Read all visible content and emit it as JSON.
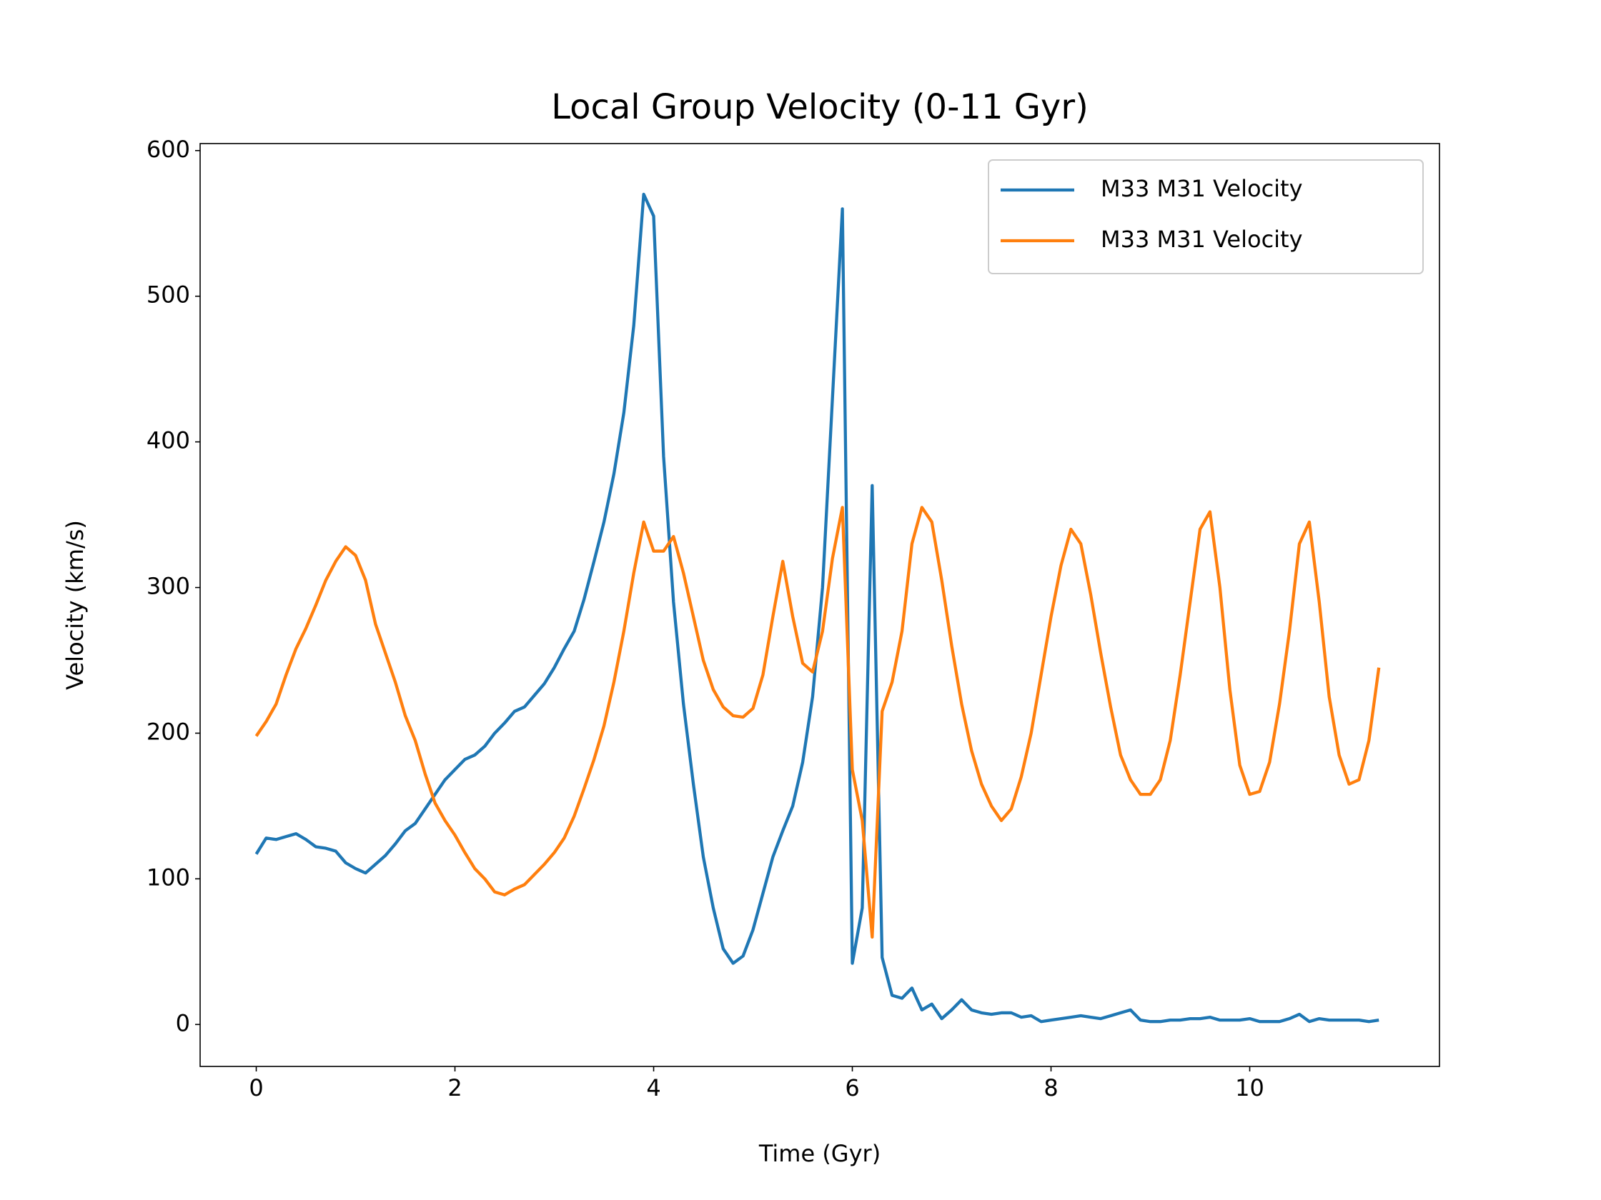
{
  "chart_data": {
    "type": "line",
    "title": "Local Group Velocity (0-11 Gyr)",
    "x_label": "Time (Gyr)",
    "y_label": "Velocity (km/s)",
    "x": [
      0,
      0.1,
      0.2,
      0.3,
      0.4,
      0.5,
      0.6,
      0.7,
      0.8,
      0.9,
      1,
      1.1,
      1.2,
      1.3,
      1.4,
      1.5,
      1.6,
      1.7,
      1.8,
      1.9,
      2,
      2.1,
      2.2,
      2.3,
      2.4,
      2.5,
      2.6,
      2.7,
      2.8,
      2.9,
      3,
      3.1,
      3.2,
      3.3,
      3.4,
      3.5,
      3.6,
      3.7,
      3.8,
      3.9,
      4,
      4.1,
      4.2,
      4.3,
      4.4,
      4.5,
      4.6,
      4.7,
      4.8,
      4.9,
      5,
      5.1,
      5.2,
      5.3,
      5.4,
      5.5,
      5.6,
      5.7,
      5.8,
      5.9,
      6,
      6.1,
      6.2,
      6.3,
      6.4,
      6.5,
      6.6,
      6.7,
      6.8,
      6.9,
      7,
      7.1,
      7.2,
      7.3,
      7.4,
      7.5,
      7.6,
      7.7,
      7.8,
      7.9,
      8,
      8.1,
      8.2,
      8.3,
      8.4,
      8.5,
      8.6,
      8.7,
      8.8,
      8.9,
      9,
      9.1,
      9.2,
      9.3,
      9.4,
      9.5,
      9.6,
      9.7,
      9.8,
      9.9,
      10,
      10.1,
      10.2,
      10.3,
      10.4,
      10.5,
      10.6,
      10.7,
      10.8,
      10.9,
      11,
      11.1,
      11.2,
      11.3
    ],
    "series": [
      {
        "name": "M33 M31 Velocity",
        "color": "#1f77b4",
        "values": [
          117,
          128,
          127,
          129,
          131,
          127,
          122,
          121,
          119,
          111,
          107,
          104,
          110,
          116,
          124,
          133,
          138,
          148,
          158,
          168,
          175,
          182,
          185,
          191,
          200,
          207,
          215,
          218,
          226,
          234,
          245,
          258,
          270,
          292,
          318,
          345,
          378,
          420,
          480,
          570,
          555,
          390,
          290,
          220,
          165,
          115,
          80,
          52,
          42,
          47,
          65,
          90,
          115,
          133,
          150,
          180,
          225,
          300,
          430,
          560,
          42,
          80,
          370,
          46,
          20,
          18,
          25,
          10,
          14,
          4,
          10,
          17,
          10,
          8,
          7,
          8,
          8,
          5,
          6,
          2,
          3,
          4,
          5,
          6,
          5,
          4,
          6,
          8,
          10,
          3,
          2,
          2,
          3,
          3,
          4,
          4,
          5,
          3,
          3,
          3,
          4,
          2,
          2,
          2,
          4,
          7,
          2,
          4,
          3,
          3,
          3,
          3,
          2,
          3
        ]
      },
      {
        "name": "M33 M31 Velocity",
        "color": "#ff7f0e",
        "values": [
          198,
          208,
          220,
          240,
          258,
          272,
          288,
          305,
          318,
          328,
          322,
          305,
          275,
          255,
          235,
          212,
          195,
          172,
          152,
          140,
          130,
          118,
          107,
          100,
          91,
          89,
          93,
          96,
          103,
          110,
          118,
          128,
          143,
          162,
          182,
          205,
          235,
          270,
          310,
          345,
          325,
          325,
          335,
          310,
          280,
          250,
          230,
          218,
          212,
          211,
          217,
          240,
          280,
          318,
          280,
          248,
          242,
          270,
          320,
          355,
          175,
          140,
          60,
          215,
          235,
          270,
          330,
          355,
          345,
          305,
          260,
          220,
          188,
          165,
          150,
          140,
          148,
          170,
          200,
          240,
          280,
          315,
          340,
          330,
          295,
          255,
          218,
          185,
          168,
          158,
          158,
          168,
          195,
          240,
          290,
          340,
          352,
          300,
          230,
          178,
          158,
          160,
          180,
          220,
          270,
          330,
          345,
          290,
          225,
          185,
          165,
          168,
          195,
          245
        ]
      }
    ],
    "xlim": [
      -0.565,
      11.91
    ],
    "xticks": [
      0,
      2,
      4,
      6,
      8,
      10
    ],
    "ylim": [
      -28.8,
      604.8
    ],
    "yticks": [
      0,
      100,
      200,
      300,
      400,
      500,
      600
    ],
    "legend": "upper right"
  }
}
